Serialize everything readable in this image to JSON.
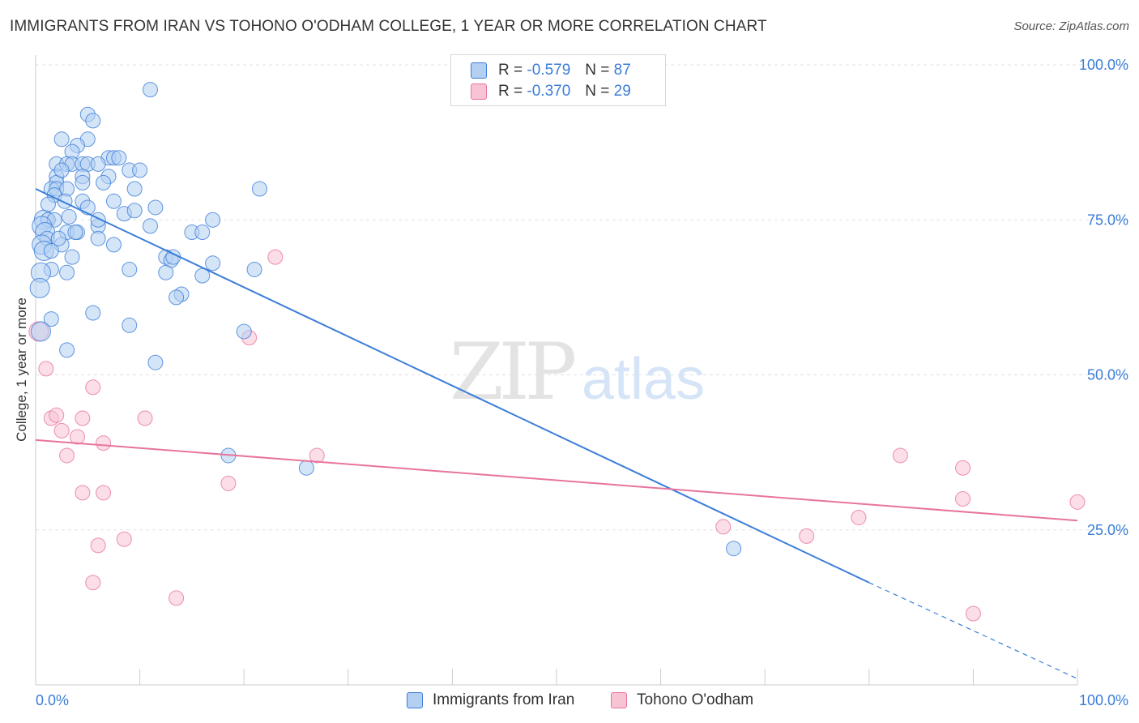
{
  "title": "IMMIGRANTS FROM IRAN VS TOHONO O'ODHAM COLLEGE, 1 YEAR OR MORE CORRELATION CHART",
  "source": "Source: ZipAtlas.com",
  "watermark": {
    "zip": "ZIP",
    "atlas": "atlas"
  },
  "legend": {
    "rows": [
      {
        "r_label": "R =",
        "r_value": "-0.579",
        "n_label": "N =",
        "n_value": "87"
      },
      {
        "r_label": "R =",
        "r_value": "-0.370",
        "n_label": "N =",
        "n_value": "29"
      }
    ]
  },
  "colors": {
    "iran": "#3b7dd8",
    "iran_fill": "#b3cff2",
    "tohono": "#e8749c",
    "tohono_fill": "#f8c3d3",
    "axis_text": "#3b7dd8"
  },
  "chart_data": {
    "type": "scatter",
    "title": "IMMIGRANTS FROM IRAN VS TOHONO O'ODHAM COLLEGE, 1 YEAR OR MORE CORRELATION CHART",
    "xlabel": "",
    "ylabel": "College, 1 year or more",
    "xlim": [
      0,
      100
    ],
    "ylim": [
      0,
      100
    ],
    "x_tick_labels": [
      "0.0%",
      "100.0%"
    ],
    "y_ticks": [
      25,
      50,
      75,
      100
    ],
    "y_tick_labels": [
      "25.0%",
      "50.0%",
      "75.0%",
      "100.0%"
    ],
    "grid": true,
    "legend_position": "top-center",
    "series": [
      {
        "name": "Immigrants from Iran",
        "color": "#3b7dd8",
        "r": -0.579,
        "n": 87,
        "trend": {
          "x0": 0,
          "y0": 80.0,
          "x1": 80,
          "y1": 16.5,
          "dashed_to_x": 100,
          "dashed_to_y": 1.0
        },
        "points": [
          [
            11,
            96
          ],
          [
            5,
            92
          ],
          [
            5.5,
            91
          ],
          [
            2.5,
            88
          ],
          [
            5,
            88
          ],
          [
            4,
            87
          ],
          [
            3.5,
            86
          ],
          [
            7,
            85
          ],
          [
            7.5,
            85
          ],
          [
            8,
            85
          ],
          [
            2,
            84
          ],
          [
            3,
            84
          ],
          [
            3.5,
            84
          ],
          [
            4.5,
            84
          ],
          [
            5,
            84
          ],
          [
            6,
            84
          ],
          [
            9,
            83
          ],
          [
            10,
            83
          ],
          [
            2,
            82
          ],
          [
            4.5,
            82
          ],
          [
            7,
            82
          ],
          [
            2,
            81
          ],
          [
            4.5,
            81
          ],
          [
            1.5,
            80
          ],
          [
            2,
            80
          ],
          [
            3,
            80
          ],
          [
            9.5,
            80
          ],
          [
            21.5,
            80
          ],
          [
            1.8,
            79
          ],
          [
            7.5,
            78
          ],
          [
            4.5,
            78
          ],
          [
            11.5,
            77
          ],
          [
            5,
            77
          ],
          [
            8.5,
            76
          ],
          [
            17,
            75
          ],
          [
            0.8,
            75
          ],
          [
            1.2,
            75
          ],
          [
            1.8,
            75
          ],
          [
            0.6,
            74
          ],
          [
            11,
            74
          ],
          [
            6,
            74
          ],
          [
            3,
            73
          ],
          [
            0.9,
            73
          ],
          [
            4,
            73
          ],
          [
            3.8,
            73
          ],
          [
            15,
            73
          ],
          [
            16,
            73
          ],
          [
            1.1,
            72
          ],
          [
            6,
            72
          ],
          [
            2.5,
            71
          ],
          [
            0.6,
            71
          ],
          [
            0.8,
            70
          ],
          [
            3.5,
            69
          ],
          [
            12.5,
            69
          ],
          [
            17,
            68
          ],
          [
            13,
            68.5
          ],
          [
            9,
            67
          ],
          [
            1.5,
            67
          ],
          [
            21,
            67
          ],
          [
            12.5,
            66.5
          ],
          [
            3,
            66.5
          ],
          [
            0.5,
            66.5
          ],
          [
            16,
            66
          ],
          [
            0.4,
            64
          ],
          [
            14,
            63
          ],
          [
            13.5,
            62.5
          ],
          [
            5.5,
            60
          ],
          [
            1.5,
            59
          ],
          [
            9,
            58
          ],
          [
            0.5,
            57
          ],
          [
            20,
            57
          ],
          [
            3,
            54
          ],
          [
            11.5,
            52
          ],
          [
            26,
            35
          ],
          [
            18.5,
            37
          ],
          [
            67,
            22
          ],
          [
            6.5,
            81
          ],
          [
            2.5,
            83
          ],
          [
            2.8,
            78
          ],
          [
            1.2,
            77.5
          ],
          [
            9.5,
            76.5
          ],
          [
            3.2,
            75.5
          ],
          [
            6,
            75
          ],
          [
            1.5,
            70
          ],
          [
            7.5,
            71
          ],
          [
            2.2,
            72
          ],
          [
            13.2,
            69
          ]
        ]
      },
      {
        "name": "Tohono O'odham",
        "color": "#e8749c",
        "r": -0.37,
        "n": 29,
        "trend": {
          "x0": 0,
          "y0": 39.5,
          "x1": 100,
          "y1": 26.5
        },
        "points": [
          [
            23,
            69
          ],
          [
            20.5,
            56
          ],
          [
            1,
            51
          ],
          [
            5.5,
            48
          ],
          [
            1.5,
            43
          ],
          [
            2,
            43.5
          ],
          [
            4.5,
            43
          ],
          [
            10.5,
            43
          ],
          [
            2.5,
            41
          ],
          [
            4,
            40
          ],
          [
            6.5,
            39
          ],
          [
            27,
            37
          ],
          [
            3,
            37
          ],
          [
            83,
            37
          ],
          [
            89,
            35
          ],
          [
            18.5,
            32.5
          ],
          [
            4.5,
            31
          ],
          [
            6.5,
            31
          ],
          [
            89,
            30
          ],
          [
            100,
            29.5
          ],
          [
            79,
            27
          ],
          [
            66,
            25.5
          ],
          [
            74,
            24
          ],
          [
            8.5,
            23.5
          ],
          [
            6,
            22.5
          ],
          [
            5.5,
            16.5
          ],
          [
            13.5,
            14
          ],
          [
            90,
            11.5
          ],
          [
            0.3,
            57
          ]
        ]
      }
    ]
  },
  "bottom_legend": {
    "items": [
      {
        "label": "Immigrants from Iran"
      },
      {
        "label": "Tohono O'odham"
      }
    ]
  }
}
